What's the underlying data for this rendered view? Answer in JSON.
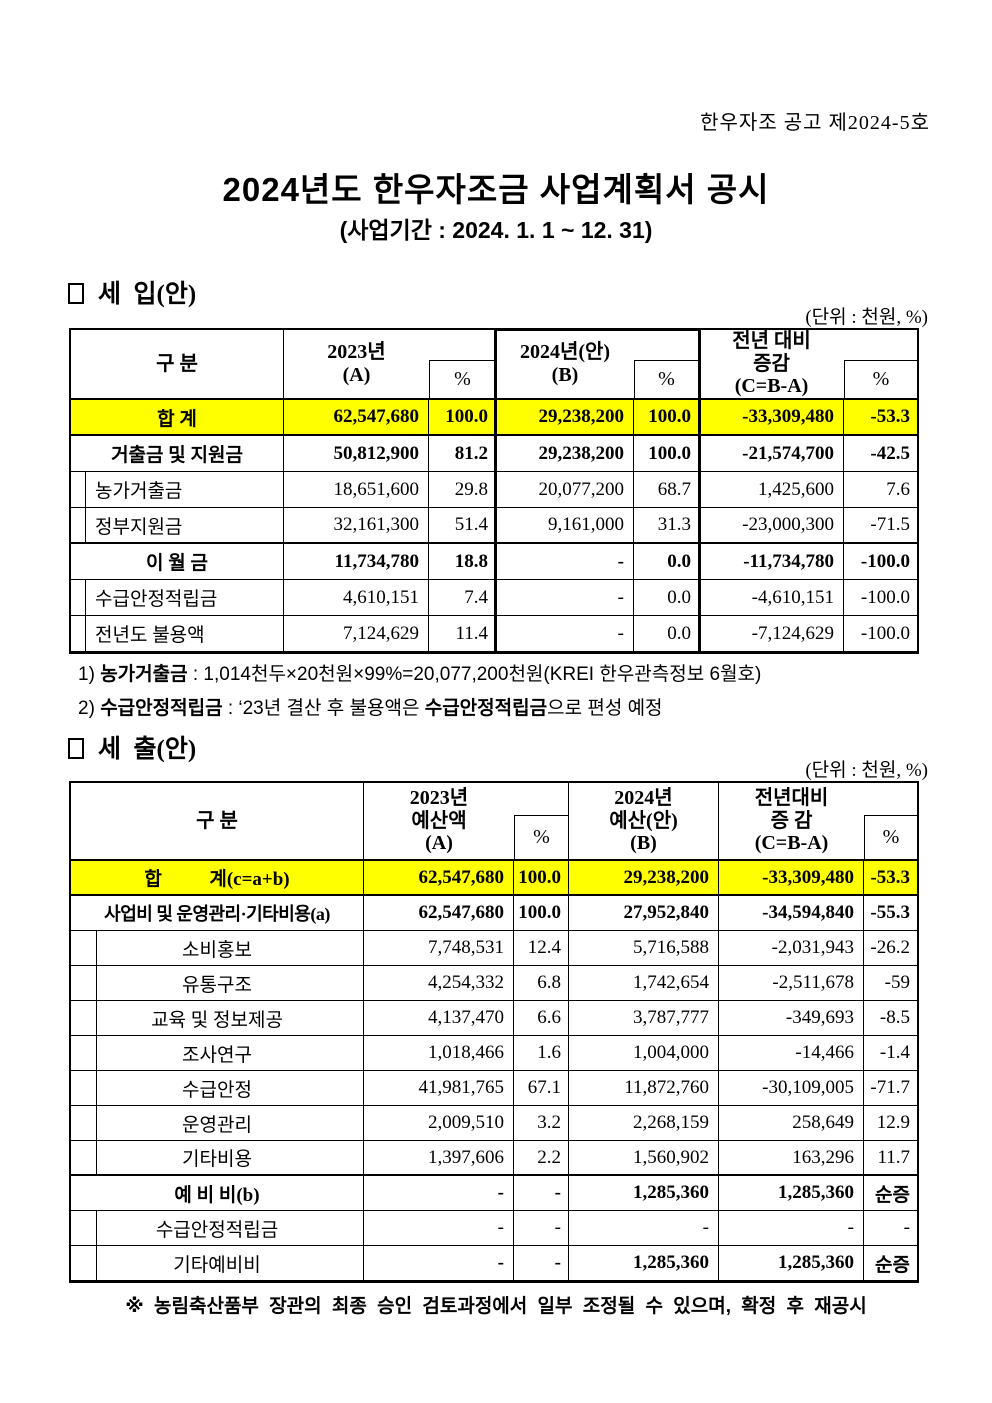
{
  "page": {
    "notice_no": "한우자조 공고 제2024-5호",
    "title": "2024년도 한우자조금 사업계획서 공시",
    "subtitle": "(사업기간 : 2024. 1. 1 ~ 12. 31)",
    "closing_note": "※ 농림축산품부 장관의 최종 승인 검토과정에서 일부 조정될 수 있으며, 확정 후 재공시"
  },
  "colors": {
    "highlight": "#ffff00"
  },
  "income": {
    "section_title": "세  입(안)",
    "unit_label": "(단위 : 천원, %)",
    "header": {
      "category": "구  분",
      "a": "2023년\n(A)",
      "pct": "%",
      "b": "2024년(안)\n(B)",
      "c": "전년 대비\n증감\n(C=B-A)"
    },
    "rows": [
      {
        "label": "합 계",
        "a": "62,547,680",
        "ap": "100.0",
        "b": "29,238,200",
        "bp": "100.0",
        "c": "-33,309,480",
        "cp": "-53.3"
      },
      {
        "label": "거출금 및 지원금",
        "a": "50,812,900",
        "ap": "81.2",
        "b": "29,238,200",
        "bp": "100.0",
        "c": "-21,574,700",
        "cp": "-42.5"
      },
      {
        "label": "농가거출금",
        "a": "18,651,600",
        "ap": "29.8",
        "b": "20,077,200",
        "bp": "68.7",
        "c": "1,425,600",
        "cp": "7.6"
      },
      {
        "label": "정부지원금",
        "a": "32,161,300",
        "ap": "51.4",
        "b": "9,161,000",
        "bp": "31.3",
        "c": "-23,000,300",
        "cp": "-71.5"
      },
      {
        "label": "이 월 금",
        "a": "11,734,780",
        "ap": "18.8",
        "b": "-",
        "bp": "0.0",
        "c": "-11,734,780",
        "cp": "-100.0"
      },
      {
        "label": "수급안정적립금",
        "a": "4,610,151",
        "ap": "7.4",
        "b": "-",
        "bp": "0.0",
        "c": "-4,610,151",
        "cp": "-100.0"
      },
      {
        "label": "전년도 불용액",
        "a": "7,124,629",
        "ap": "11.4",
        "b": "-",
        "bp": "0.0",
        "c": "-7,124,629",
        "cp": "-100.0"
      }
    ],
    "footnotes": {
      "fn1_num": "1)",
      "fn1_term": "농가거출금",
      "fn1_rest": " : 1,014천두×20천원×99%=20,077,200천원(KREI 한우관측정보 6월호)",
      "fn2_num": "2)",
      "fn2_term": "수급안정적립금",
      "fn2_mid": " : ‘23년 결산 후 불용액은 ",
      "fn2_term2": "수급안정적립금",
      "fn2_tail": "으로 편성 예정"
    }
  },
  "expenditure": {
    "section_title": "세  출(안)",
    "unit_label": "(단위 : 천원, %)",
    "header": {
      "category": "구   분",
      "a": "2023년\n예산액\n(A)",
      "pct": "%",
      "b": "2024년\n예산(안)\n(B)",
      "c": "전년대비\n증 감\n(C=B-A)"
    },
    "rows": [
      {
        "label": "합          계(c=a+b)",
        "a": "62,547,680",
        "ap": "100.0",
        "b": "29,238,200",
        "c": "-33,309,480",
        "cp": "-53.3"
      },
      {
        "label": "사업비 및 운영관리·기타비용(a)",
        "a": "62,547,680",
        "ap": "100.0",
        "b": "27,952,840",
        "c": "-34,594,840",
        "cp": "-55.3"
      },
      {
        "label": "소비홍보",
        "a": "7,748,531",
        "ap": "12.4",
        "b": "5,716,588",
        "c": "-2,031,943",
        "cp": "-26.2"
      },
      {
        "label": "유통구조",
        "a": "4,254,332",
        "ap": "6.8",
        "b": "1,742,654",
        "c": "-2,511,678",
        "cp": "-59"
      },
      {
        "label": "교육 및 정보제공",
        "a": "4,137,470",
        "ap": "6.6",
        "b": "3,787,777",
        "c": "-349,693",
        "cp": "-8.5"
      },
      {
        "label": "조사연구",
        "a": "1,018,466",
        "ap": "1.6",
        "b": "1,004,000",
        "c": "-14,466",
        "cp": "-1.4"
      },
      {
        "label": "수급안정",
        "a": "41,981,765",
        "ap": "67.1",
        "b": "11,872,760",
        "c": "-30,109,005",
        "cp": "-71.7"
      },
      {
        "label": "운영관리",
        "a": "2,009,510",
        "ap": "3.2",
        "b": "2,268,159",
        "c": "258,649",
        "cp": "12.9"
      },
      {
        "label": "기타비용",
        "a": "1,397,606",
        "ap": "2.2",
        "b": "1,560,902",
        "c": "163,296",
        "cp": "11.7"
      },
      {
        "label": "예 비 비(b)",
        "a": "-",
        "ap": "-",
        "b": "1,285,360",
        "c": "1,285,360",
        "cp": "순증"
      },
      {
        "label": "수급안정적립금",
        "a": "-",
        "ap": "-",
        "b": "-",
        "c": "-",
        "cp": "-"
      },
      {
        "label": "기타예비비",
        "a": "-",
        "ap": "-",
        "b": "1,285,360",
        "c": "1,285,360",
        "cp": "순증"
      }
    ]
  }
}
